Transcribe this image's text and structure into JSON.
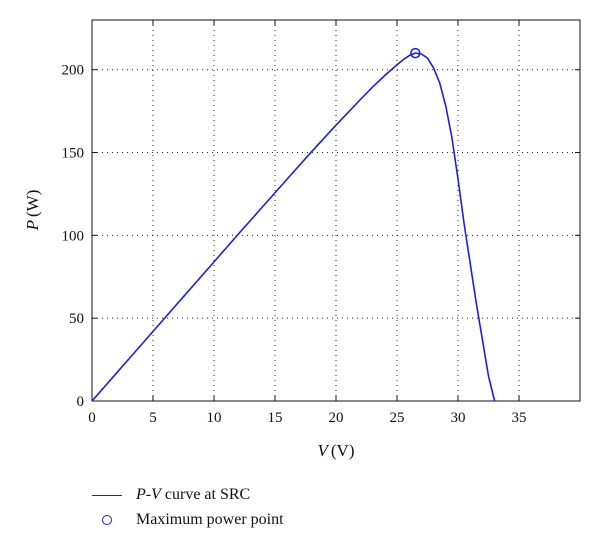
{
  "colors": {
    "series": "#1f1fd6",
    "axes": "#111111",
    "grid": "#222222"
  },
  "chart_data": {
    "type": "line",
    "title": "",
    "xlabel": {
      "var": "V",
      "unit": "(V)"
    },
    "ylabel": {
      "var": "P",
      "unit": "(W)"
    },
    "xlim": [
      0,
      40
    ],
    "ylim": [
      0,
      230
    ],
    "xticks": [
      0,
      5,
      10,
      15,
      20,
      25,
      30,
      35
    ],
    "yticks": [
      0,
      50,
      100,
      150,
      200
    ],
    "grid": "dotted",
    "legend_position": "below",
    "series": [
      {
        "name_parts": [
          "P",
          "-",
          "V",
          " curve at SRC"
        ],
        "style": "line",
        "x": [
          0,
          2,
          4,
          6,
          8,
          10,
          12,
          14,
          16,
          18,
          20,
          22,
          23,
          24,
          25,
          25.5,
          26,
          26.5,
          27,
          27.5,
          28,
          28.5,
          29,
          29.5,
          30,
          30.5,
          31,
          31.5,
          32,
          32.5,
          33
        ],
        "y": [
          0,
          16.8,
          33.6,
          50.4,
          67.2,
          84,
          100.8,
          117.4,
          134,
          150.5,
          166.5,
          182,
          189.5,
          196.5,
          203,
          206,
          208.5,
          210,
          209.5,
          207,
          201,
          192,
          178,
          159,
          134,
          107,
          83,
          59,
          37,
          15,
          0
        ]
      },
      {
        "name": "Maximum power point",
        "style": "marker",
        "x": [
          26.5
        ],
        "y": [
          210
        ]
      }
    ]
  }
}
